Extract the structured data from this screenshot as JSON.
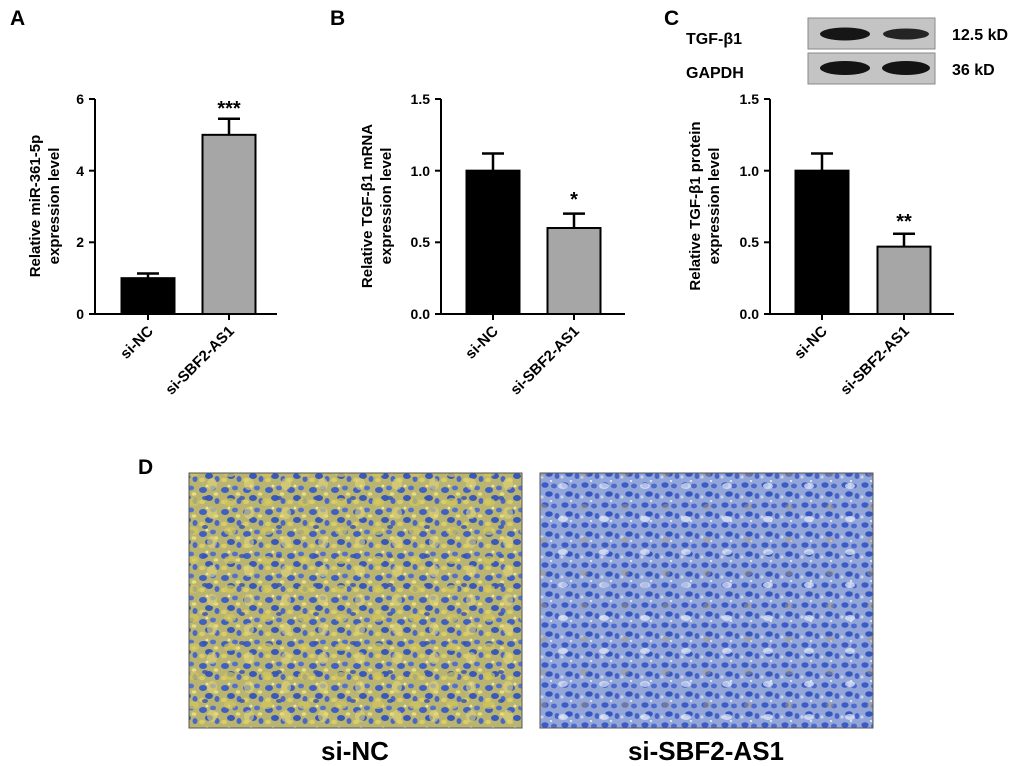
{
  "panels": {
    "A": {
      "letter": "A",
      "ylabel_line1": "Relative miR-361-5p",
      "ylabel_line2": "expression level",
      "ticks": [
        "0",
        "2",
        "4",
        "6"
      ],
      "categories": [
        "si-NC",
        "si-SBF2-AS1"
      ],
      "significance": "***"
    },
    "B": {
      "letter": "B",
      "ylabel_line1": "Relative TGF-β1 mRNA",
      "ylabel_line2": "expression level",
      "ticks": [
        "0.0",
        "0.5",
        "1.0",
        "1.5"
      ],
      "categories": [
        "si-NC",
        "si-SBF2-AS1"
      ],
      "significance": "*"
    },
    "C": {
      "letter": "C",
      "ylabel_line1": "Relative TGF-β1 protein",
      "ylabel_line2": "expression level",
      "ticks": [
        "0.0",
        "0.5",
        "1.0",
        "1.5"
      ],
      "categories": [
        "si-NC",
        "si-SBF2-AS1"
      ],
      "significance": "**",
      "blot": {
        "rows": [
          {
            "protein": "TGF-β1",
            "size": "12.5 kD"
          },
          {
            "protein": "GAPDH",
            "size": "36 kD"
          }
        ]
      }
    },
    "D": {
      "letter": "D",
      "images": [
        {
          "caption": "si-NC",
          "stain": "strong yellow-brown (positive)"
        },
        {
          "caption": "si-SBF2-AS1",
          "stain": "weak (mostly blue)"
        }
      ]
    }
  },
  "colors": {
    "control_bar": "#000000",
    "treatment_bar": "#a6a6a6",
    "nuclei": "#3f5fc2",
    "background_blue": "#8aa0d8",
    "positive_stain": "#d2c254"
  },
  "chart_data": [
    {
      "type": "bar",
      "panel": "A",
      "categories": [
        "si-NC",
        "si-SBF2-AS1"
      ],
      "values": [
        1.0,
        5.0
      ],
      "errors": [
        0.13,
        0.45
      ],
      "ylabel": "Relative miR-361-5p expression level",
      "ylim": [
        0,
        6
      ],
      "yticks": [
        0,
        2,
        4,
        6
      ],
      "annotations": [
        "",
        "***"
      ]
    },
    {
      "type": "bar",
      "panel": "B",
      "categories": [
        "si-NC",
        "si-SBF2-AS1"
      ],
      "values": [
        1.0,
        0.6
      ],
      "errors": [
        0.12,
        0.1
      ],
      "ylabel": "Relative TGF-β1 mRNA expression level",
      "ylim": [
        0,
        1.5
      ],
      "yticks": [
        0,
        0.5,
        1.0,
        1.5
      ],
      "annotations": [
        "",
        "*"
      ]
    },
    {
      "type": "bar",
      "panel": "C",
      "categories": [
        "si-NC",
        "si-SBF2-AS1"
      ],
      "values": [
        1.0,
        0.47
      ],
      "errors": [
        0.12,
        0.09
      ],
      "ylabel": "Relative TGF-β1 protein expression level",
      "ylim": [
        0,
        1.5
      ],
      "yticks": [
        0,
        0.5,
        1.0,
        1.5
      ],
      "annotations": [
        "",
        "**"
      ]
    }
  ]
}
